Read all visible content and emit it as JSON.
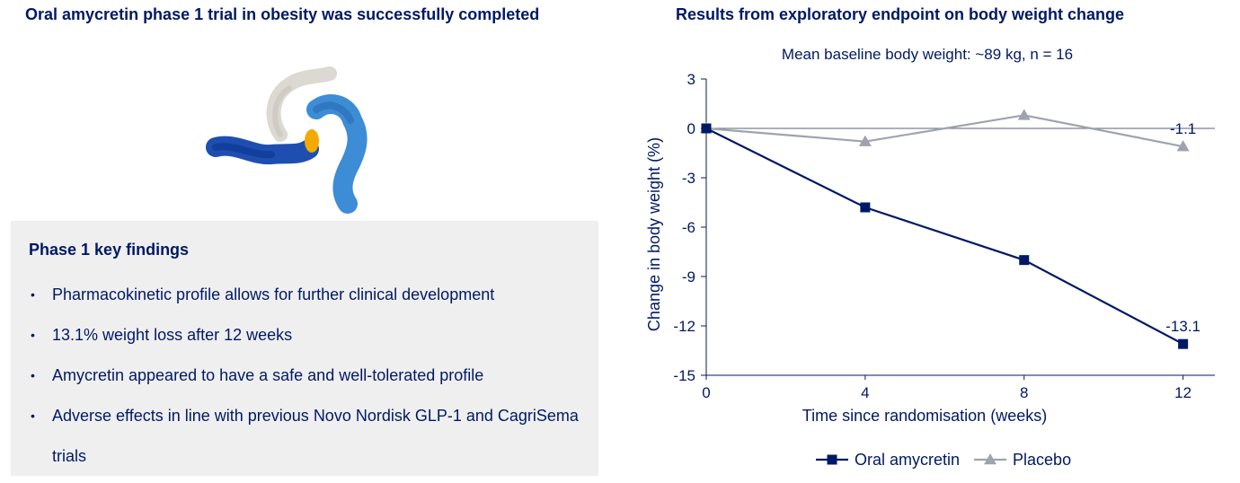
{
  "left": {
    "title": "Oral amycretin phase 1 trial in obesity was successfully completed",
    "findings": {
      "title": "Phase 1 key findings",
      "items": [
        "Pharmacokinetic profile allows for further clinical development",
        "13.1% weight loss after 12 weeks",
        "Amycretin appeared to have a safe and well-tolerated profile",
        "Adverse effects in line with previous Novo Nordisk GLP-1 and CagriSema trials"
      ]
    }
  },
  "chart_data": {
    "type": "line",
    "title": "Results from exploratory endpoint on body weight change",
    "subtitle": "Mean baseline body weight: ~89 kg, n = 16",
    "xlabel": "Time since randomisation (weeks)",
    "ylabel": "Change in body weight (%)",
    "x": [
      0,
      4,
      8,
      12
    ],
    "x_ticks": [
      0,
      4,
      8,
      12
    ],
    "y_ticks": [
      3,
      0,
      -3,
      -6,
      -9,
      -12,
      -15
    ],
    "ylim": [
      -15,
      3
    ],
    "grid": false,
    "legend_position": "bottom",
    "series": [
      {
        "name": "Oral amycretin",
        "values": [
          0,
          -4.8,
          -8.0,
          -13.1
        ],
        "marker": "square",
        "color": "#001965",
        "end_label": "-13.1"
      },
      {
        "name": "Placebo",
        "values": [
          0,
          -0.8,
          0.8,
          -1.1
        ],
        "marker": "triangle",
        "color": "#9ea3ad",
        "end_label": "-1.1"
      }
    ]
  }
}
